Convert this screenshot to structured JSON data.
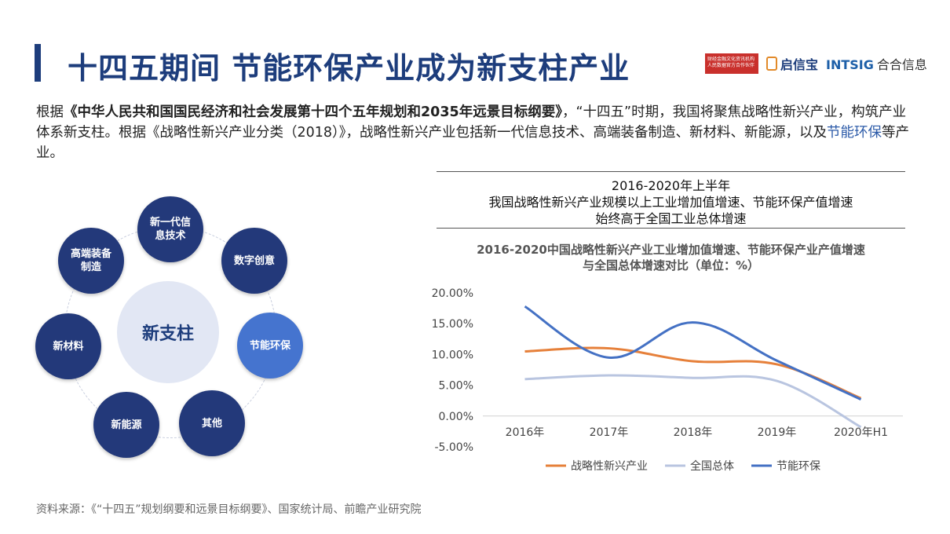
{
  "header": {
    "title": "十四五期间 节能环保产业成为新支柱产业",
    "logos": {
      "red_box_text": "财经金融文化资讯机构 人民数据官方合作伙伴",
      "qixinbao": "启信宝",
      "intsig": "INTSIG",
      "hehe": "合合信息"
    }
  },
  "intro": {
    "p1": "根据",
    "bold": "《中华人民共和国国民经济和社会发展第十四个五年规划和2035年远景目标纲要》",
    "p2": "，“十四五”时期，我国将聚焦战略性新兴产业，构筑产业体系新支柱。根据《战略性新兴产业分类（2018）》，战略性新兴产业包括新一代信息技术、高端装备制造、新材料、新能源，以及",
    "highlight": "节能环保",
    "p3": "等产业。"
  },
  "diagram": {
    "center": "新支柱",
    "nodes": [
      "新一代信息技术",
      "数字创意",
      "节能环保",
      "其他",
      "新能源",
      "新材料",
      "高端装备制造"
    ]
  },
  "summary": {
    "line1": "2016-2020年上半年",
    "line2": "我国战略性新兴产业规模以上工业增加值增速、节能环保产值增速",
    "line3": "始终高于全国工业总体增速"
  },
  "chart_data": {
    "type": "line",
    "title": "2016-2020中国战略性新兴产业工业增加值增速、节能环保产业产值增速",
    "subtitle": "与全国总体增速对比（单位：%）",
    "categories": [
      "2016年",
      "2017年",
      "2018年",
      "2019年",
      "2020年H1"
    ],
    "y_ticks": [
      "20.00%",
      "15.00%",
      "10.00%",
      "5.00%",
      "0.00%",
      "-5.00%"
    ],
    "ylim": [
      -5,
      20
    ],
    "legend_position": "bottom",
    "series": [
      {
        "name": "战略性新兴产业",
        "color": "#e6803a",
        "values": [
          10.5,
          11.0,
          8.9,
          8.4,
          2.9
        ]
      },
      {
        "name": "全国总体",
        "color": "#b9c5e0",
        "values": [
          6.0,
          6.6,
          6.2,
          5.7,
          -1.8
        ]
      },
      {
        "name": "节能环保",
        "color": "#4471c4",
        "values": [
          17.8,
          9.5,
          15.2,
          9.0,
          2.7
        ]
      }
    ]
  },
  "source": "资料来源：《“十四五”规划纲要和远景目标纲要》、国家统计局、前瞻产业研究院"
}
